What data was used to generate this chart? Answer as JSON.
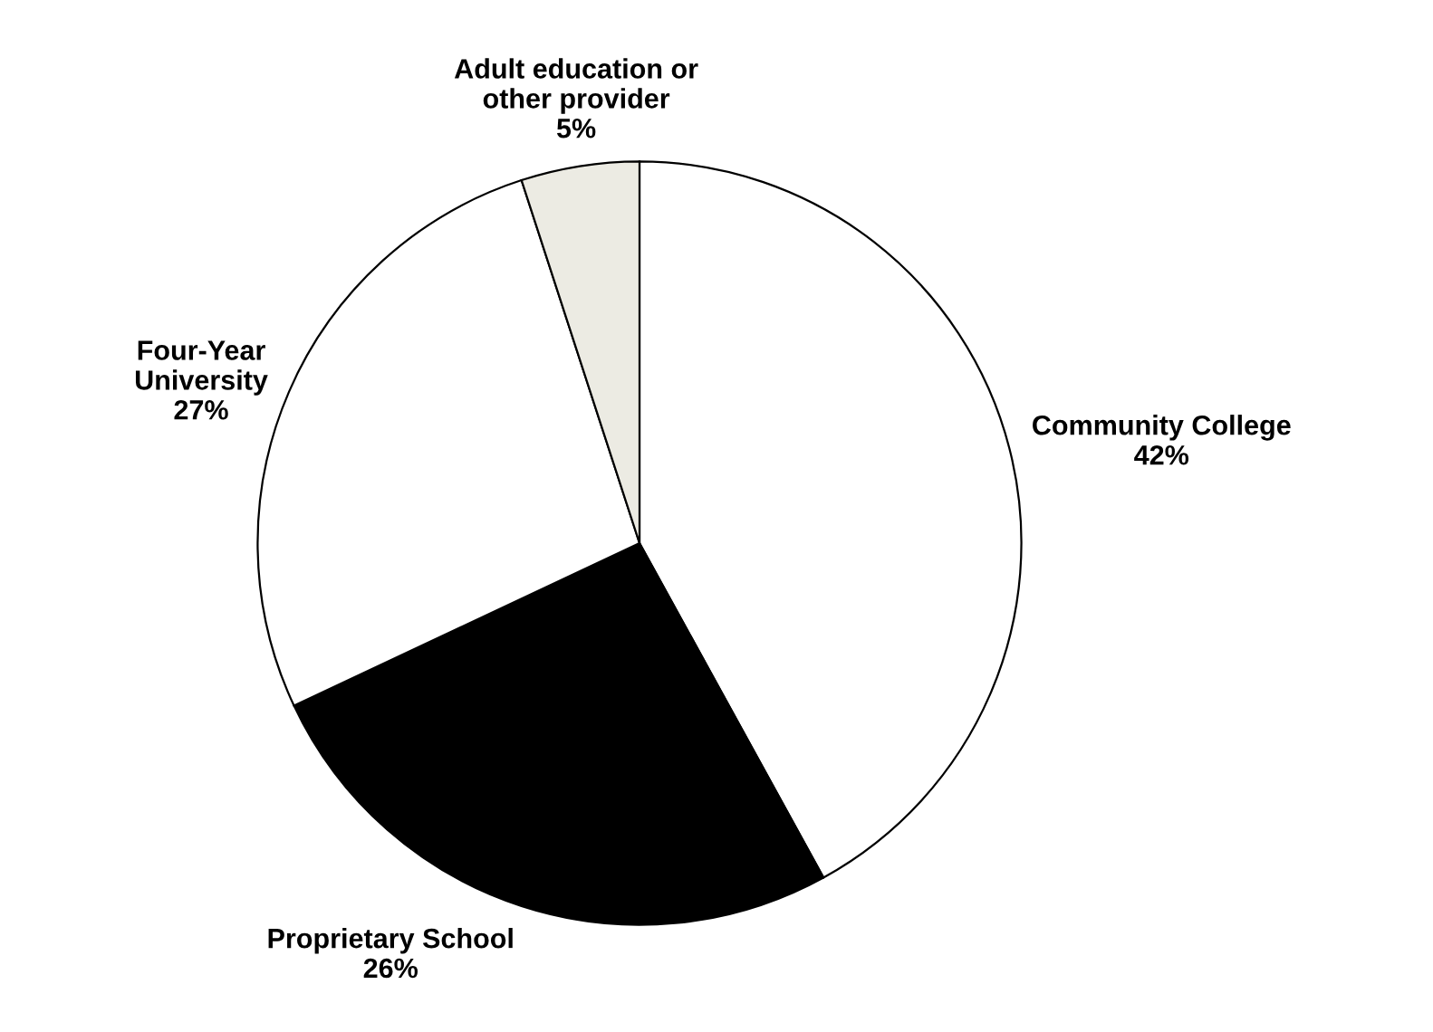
{
  "chart_data": {
    "type": "pie",
    "categories": [
      "Community College",
      "Proprietary School",
      "Four-Year\nUniversity",
      "Adult education or\nother provider"
    ],
    "values": [
      42,
      26,
      27,
      5
    ],
    "value_labels": [
      "42%",
      "26%",
      "27%",
      "5%"
    ],
    "colors": [
      "#ffffff",
      "#000000",
      "#ffffff",
      "#ecebe3"
    ]
  }
}
